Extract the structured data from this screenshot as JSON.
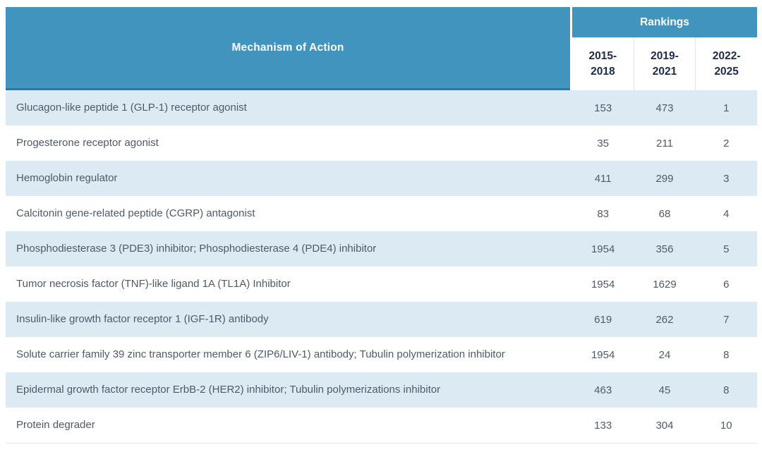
{
  "table": {
    "mechanism_header": "Mechanism of Action",
    "rankings_header": "Rankings",
    "periods": [
      {
        "line1": "2015-",
        "line2": "2018"
      },
      {
        "line1": "2019-",
        "line2": "2021"
      },
      {
        "line1": "2022-",
        "line2": "2025"
      }
    ],
    "rows": [
      {
        "mechanism": "Glucagon-like peptide 1 (GLP-1) receptor agonist",
        "r1": "153",
        "r2": "473",
        "r3": "1"
      },
      {
        "mechanism": "Progesterone receptor agonist",
        "r1": "35",
        "r2": "211",
        "r3": "2"
      },
      {
        "mechanism": "Hemoglobin regulator",
        "r1": "411",
        "r2": "299",
        "r3": "3"
      },
      {
        "mechanism": "Calcitonin gene-related peptide (CGRP) antagonist",
        "r1": "83",
        "r2": "68",
        "r3": "4"
      },
      {
        "mechanism": "Phosphodiesterase 3 (PDE3) inhibitor; Phosphodiesterase 4 (PDE4) inhibitor",
        "r1": "1954",
        "r2": "356",
        "r3": "5"
      },
      {
        "mechanism": "Tumor necrosis factor (TNF)-like ligand 1A (TL1A) Inhibitor",
        "r1": "1954",
        "r2": "1629",
        "r3": "6"
      },
      {
        "mechanism": "Insulin-like growth factor receptor 1 (IGF-1R) antibody",
        "r1": "619",
        "r2": "262",
        "r3": "7"
      },
      {
        "mechanism": "Solute carrier family 39 zinc transporter member 6 (ZIP6/LIV-1) antibody; Tubulin polymerization inhibitor",
        "r1": "1954",
        "r2": "24",
        "r3": "8"
      },
      {
        "mechanism": "Epidermal growth factor receptor ErbB-2 (HER2) inhibitor; Tubulin polymerizations inhibitor",
        "r1": "463",
        "r2": "45",
        "r3": "8"
      },
      {
        "mechanism": "Protein degrader",
        "r1": "133",
        "r2": "304",
        "r3": "10"
      }
    ]
  },
  "colors": {
    "header_blue": "#4194bd",
    "header_border_blue": "#2b7aa1",
    "row_light_blue": "#dcebf3",
    "year_text_navy": "#1c2b4a",
    "row_text_gray": "#4f5a68"
  },
  "chart_data": {
    "type": "table",
    "title": "Mechanism of Action Rankings",
    "columns": [
      "Mechanism of Action",
      "Rankings 2015-2018",
      "Rankings 2019-2021",
      "Rankings 2022-2025"
    ],
    "rows": [
      [
        "Glucagon-like peptide 1 (GLP-1) receptor agonist",
        153,
        473,
        1
      ],
      [
        "Progesterone receptor agonist",
        35,
        211,
        2
      ],
      [
        "Hemoglobin regulator",
        411,
        299,
        3
      ],
      [
        "Calcitonin gene-related peptide (CGRP) antagonist",
        83,
        68,
        4
      ],
      [
        "Phosphodiesterase 3 (PDE3) inhibitor; Phosphodiesterase 4 (PDE4) inhibitor",
        1954,
        356,
        5
      ],
      [
        "Tumor necrosis factor (TNF)-like ligand 1A (TL1A) Inhibitor",
        1954,
        1629,
        6
      ],
      [
        "Insulin-like growth factor receptor 1 (IGF-1R) antibody",
        619,
        262,
        7
      ],
      [
        "Solute carrier family 39 zinc transporter member 6 (ZIP6/LIV-1) antibody; Tubulin polymerization inhibitor",
        1954,
        24,
        8
      ],
      [
        "Epidermal growth factor receptor ErbB-2 (HER2) inhibitor; Tubulin polymerizations inhibitor",
        463,
        45,
        8
      ],
      [
        "Protein degrader",
        133,
        304,
        10
      ]
    ],
    "layout": {
      "striped": true,
      "stripe_pattern": "odd-rows-light-blue",
      "gridlines": "none"
    }
  }
}
